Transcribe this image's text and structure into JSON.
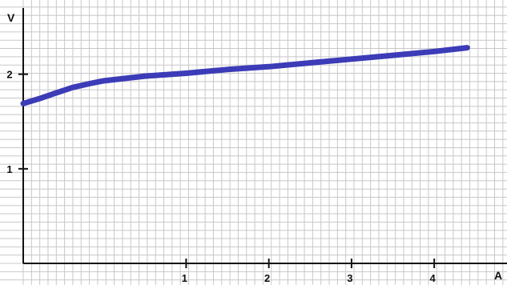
{
  "chart_data": {
    "type": "line",
    "xlabel": "A",
    "ylabel": "V",
    "xlim": [
      -0.97,
      4.88
    ],
    "ylim": [
      0,
      2.7
    ],
    "grid": true,
    "x_ticks": [
      {
        "value": 1,
        "label": "1"
      },
      {
        "value": 2,
        "label": "2"
      },
      {
        "value": 3,
        "label": "3"
      },
      {
        "value": 4,
        "label": "4"
      }
    ],
    "y_ticks": [
      {
        "value": 1,
        "label": "1"
      },
      {
        "value": 2,
        "label": "2"
      }
    ],
    "series": [
      {
        "x": [
          -0.97,
          -0.78,
          -0.58,
          -0.37,
          -0.17,
          0.0,
          0.2,
          0.5,
          1.0,
          1.5,
          2.0,
          2.5,
          3.0,
          3.5,
          4.0,
          4.4
        ],
        "y": [
          1.69,
          1.74,
          1.8,
          1.86,
          1.9,
          1.93,
          1.95,
          1.98,
          2.01,
          2.05,
          2.08,
          2.12,
          2.16,
          2.2,
          2.24,
          2.28
        ]
      }
    ],
    "colors": {
      "line": "#3c3cb8",
      "grid": "#c8c8c8",
      "axis": "#111111"
    }
  }
}
